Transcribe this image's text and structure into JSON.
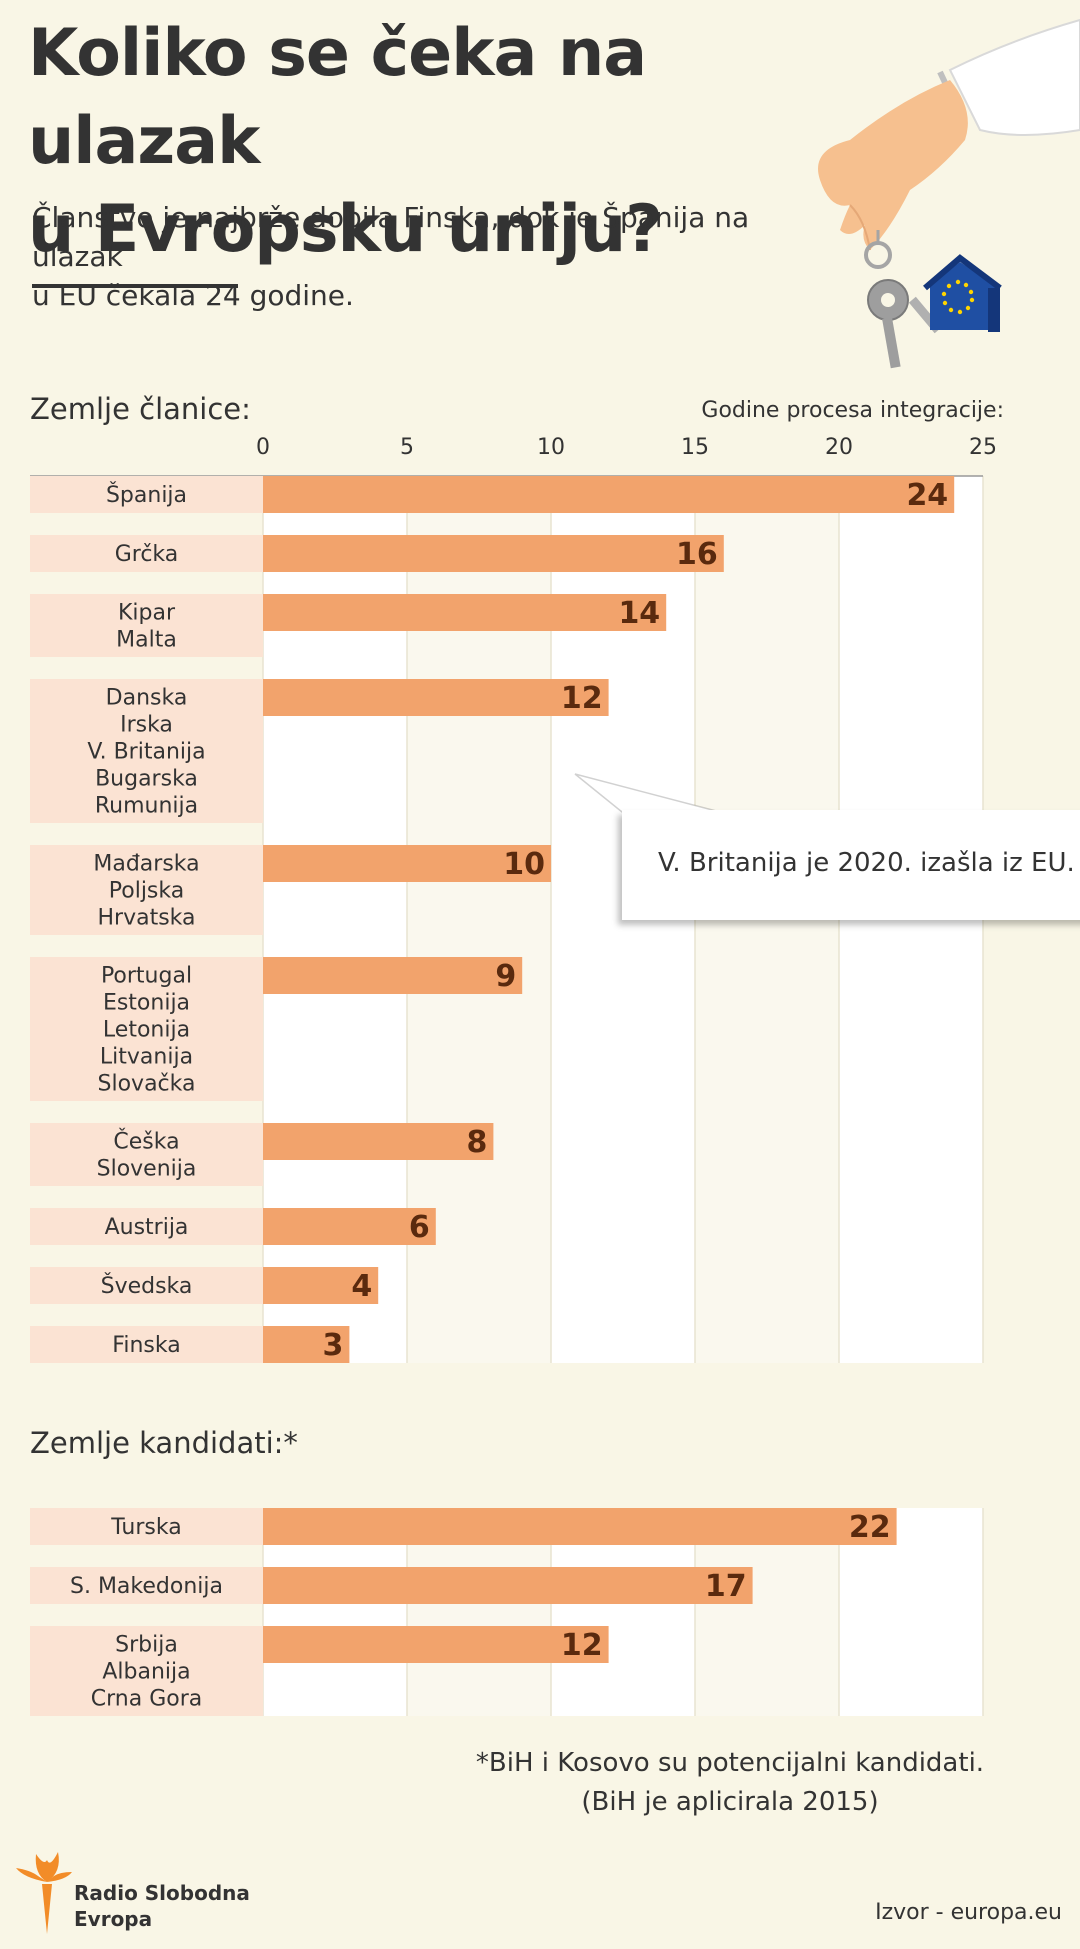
{
  "header": {
    "title_line1": "Koliko se čeka na ulazak",
    "title_line2": "u Evropsku uniju?",
    "subtitle_line1": "Članstvo je najbrže dobila Finska, dok je Španija na ulazak",
    "subtitle_line2": "u EU čekala 24 godine."
  },
  "labels": {
    "members": "Zemlje članice:",
    "candidates": "Zemlje kandidati:*",
    "axis_title": "Godine procesa integracije:"
  },
  "callout": {
    "text": "V. Britanija je 2020. izašla iz EU."
  },
  "footer": {
    "note_line1": "*BiH i Kosovo su potencijalni kandidati.",
    "note_line2": "(BiH je aplicirala 2015)",
    "logo_line1": "Radio Slobodna",
    "logo_line2": "Evropa",
    "source": "Izvor - europa.eu"
  },
  "colors": {
    "background": "#f9f6e6",
    "bar": "#f2a36c",
    "label_bg": "#fbe3d3",
    "value_text": "#5a2a0e",
    "plot_bg": "#ffffff",
    "grid_alt": "#faf8ee",
    "logo": "#f28c28"
  },
  "illustration": {
    "icon": "hand-holding-keys-eu-keychain-icon"
  },
  "chart_data": [
    {
      "type": "bar",
      "orientation": "horizontal",
      "title": "Zemlje članice:",
      "xlabel": "Godine procesa integracije:",
      "xlim": [
        0,
        25
      ],
      "xticks": [
        0,
        5,
        10,
        15,
        20,
        25
      ],
      "categories": [
        [
          "Španija"
        ],
        [
          "Grčka"
        ],
        [
          "Kipar",
          "Malta"
        ],
        [
          "Danska",
          "Irska",
          "V. Britanija",
          "Bugarska",
          "Rumunija"
        ],
        [
          "Mađarska",
          "Poljska",
          "Hrvatska"
        ],
        [
          "Portugal",
          "Estonija",
          "Letonija",
          "Litvanija",
          "Slovačka"
        ],
        [
          "Češka",
          "Slovenija"
        ],
        [
          "Austrija"
        ],
        [
          "Švedska"
        ],
        [
          "Finska"
        ]
      ],
      "values": [
        24,
        16,
        14,
        12,
        10,
        9,
        8,
        6,
        4,
        3
      ],
      "grid": true
    },
    {
      "type": "bar",
      "orientation": "horizontal",
      "title": "Zemlje kandidati:*",
      "xlim": [
        0,
        25
      ],
      "categories": [
        [
          "Turska"
        ],
        [
          "S. Makedonija"
        ],
        [
          "Srbija",
          "Albanija",
          "Crna Gora"
        ]
      ],
      "values": [
        22,
        17,
        12
      ],
      "grid": true
    }
  ]
}
